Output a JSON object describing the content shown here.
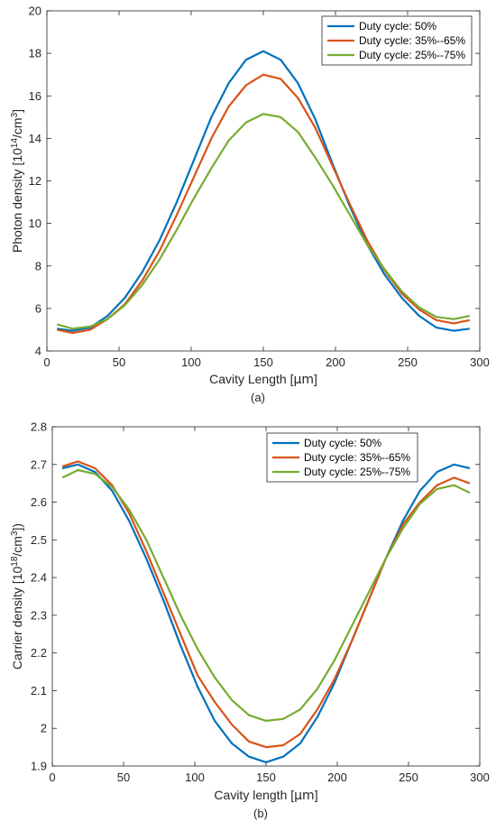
{
  "chart_data": [
    {
      "type": "line",
      "caption": "(a)",
      "xlabel": "Cavity Length [",
      "xlabel_unit": "μm",
      "xlabel_end": "]",
      "ylabel_main": "Photon density [10",
      "ylabel_sup1": "14",
      "ylabel_mid": "/cm",
      "ylabel_sup2": "3",
      "ylabel_end": "]",
      "xlim": [
        0,
        300
      ],
      "ylim": [
        4,
        20
      ],
      "xticks": [
        0,
        50,
        100,
        150,
        200,
        250,
        300
      ],
      "yticks": [
        4,
        6,
        8,
        10,
        12,
        14,
        16,
        18,
        20
      ],
      "grid": false,
      "legend_position": "top-right",
      "x": [
        7,
        18,
        30,
        42,
        54,
        66,
        78,
        90,
        102,
        114,
        126,
        138,
        150,
        162,
        174,
        186,
        198,
        210,
        222,
        234,
        246,
        258,
        270,
        282,
        293
      ],
      "series": [
        {
          "name": "Duty cycle: 50%",
          "color": "#0072BD",
          "values": [
            5.05,
            4.95,
            5.1,
            5.65,
            6.5,
            7.7,
            9.2,
            11.0,
            13.0,
            15.0,
            16.6,
            17.7,
            18.1,
            17.7,
            16.6,
            14.9,
            12.8,
            10.8,
            9.0,
            7.6,
            6.5,
            5.65,
            5.1,
            4.95,
            5.05
          ]
        },
        {
          "name": "Duty cycle: 35%--65%",
          "color": "#D95319",
          "values": [
            5.0,
            4.85,
            5.0,
            5.5,
            6.2,
            7.3,
            8.7,
            10.4,
            12.2,
            14.0,
            15.5,
            16.5,
            17.0,
            16.8,
            15.9,
            14.5,
            12.7,
            10.9,
            9.2,
            7.8,
            6.7,
            5.95,
            5.45,
            5.3,
            5.45
          ]
        },
        {
          "name": "Duty cycle: 25%--75%",
          "color": "#77AC30",
          "values": [
            5.25,
            5.05,
            5.15,
            5.5,
            6.15,
            7.1,
            8.3,
            9.7,
            11.2,
            12.6,
            13.9,
            14.75,
            15.15,
            15.0,
            14.3,
            13.1,
            11.8,
            10.4,
            9.0,
            7.85,
            6.8,
            6.05,
            5.6,
            5.5,
            5.65
          ]
        }
      ]
    },
    {
      "type": "line",
      "caption": "(b)",
      "xlabel": "Cavity length [",
      "xlabel_unit": "μm",
      "xlabel_end": "]",
      "ylabel_main": "Carrier density [10",
      "ylabel_sup1": "18",
      "ylabel_mid": "/cm",
      "ylabel_sup2": "3",
      "ylabel_end": "])",
      "xlim": [
        0,
        300
      ],
      "ylim": [
        1.9,
        2.8
      ],
      "xticks": [
        0,
        50,
        100,
        150,
        200,
        250,
        300
      ],
      "yticks": [
        1.9,
        2.0,
        2.1,
        2.2,
        2.3,
        2.4,
        2.5,
        2.6,
        2.7,
        2.8
      ],
      "ytick_labels": [
        "1.9",
        "2",
        "2.1",
        "2.2",
        "2.3",
        "2.4",
        "2.5",
        "2.6",
        "2.7",
        "2.8"
      ],
      "grid": false,
      "legend_position": "top-center",
      "x": [
        7,
        18,
        30,
        42,
        54,
        66,
        78,
        90,
        102,
        114,
        126,
        138,
        150,
        162,
        174,
        186,
        198,
        210,
        222,
        234,
        246,
        258,
        270,
        282,
        293
      ],
      "series": [
        {
          "name": "Duty cycle: 50%",
          "color": "#0072BD",
          "values": [
            2.69,
            2.7,
            2.68,
            2.63,
            2.55,
            2.45,
            2.34,
            2.22,
            2.11,
            2.02,
            1.96,
            1.925,
            1.91,
            1.925,
            1.96,
            2.03,
            2.12,
            2.23,
            2.34,
            2.45,
            2.55,
            2.63,
            2.68,
            2.7,
            2.69
          ]
        },
        {
          "name": "Duty cycle: 35%--65%",
          "color": "#D95319",
          "values": [
            2.695,
            2.708,
            2.69,
            2.645,
            2.57,
            2.47,
            2.36,
            2.25,
            2.14,
            2.07,
            2.01,
            1.965,
            1.95,
            1.955,
            1.985,
            2.05,
            2.13,
            2.23,
            2.34,
            2.45,
            2.54,
            2.6,
            2.645,
            2.665,
            2.65
          ]
        },
        {
          "name": "Duty cycle: 25%--75%",
          "color": "#77AC30",
          "values": [
            2.665,
            2.685,
            2.675,
            2.64,
            2.58,
            2.5,
            2.4,
            2.3,
            2.21,
            2.135,
            2.075,
            2.035,
            2.02,
            2.025,
            2.05,
            2.105,
            2.18,
            2.27,
            2.36,
            2.45,
            2.53,
            2.595,
            2.635,
            2.645,
            2.625
          ]
        }
      ]
    }
  ]
}
